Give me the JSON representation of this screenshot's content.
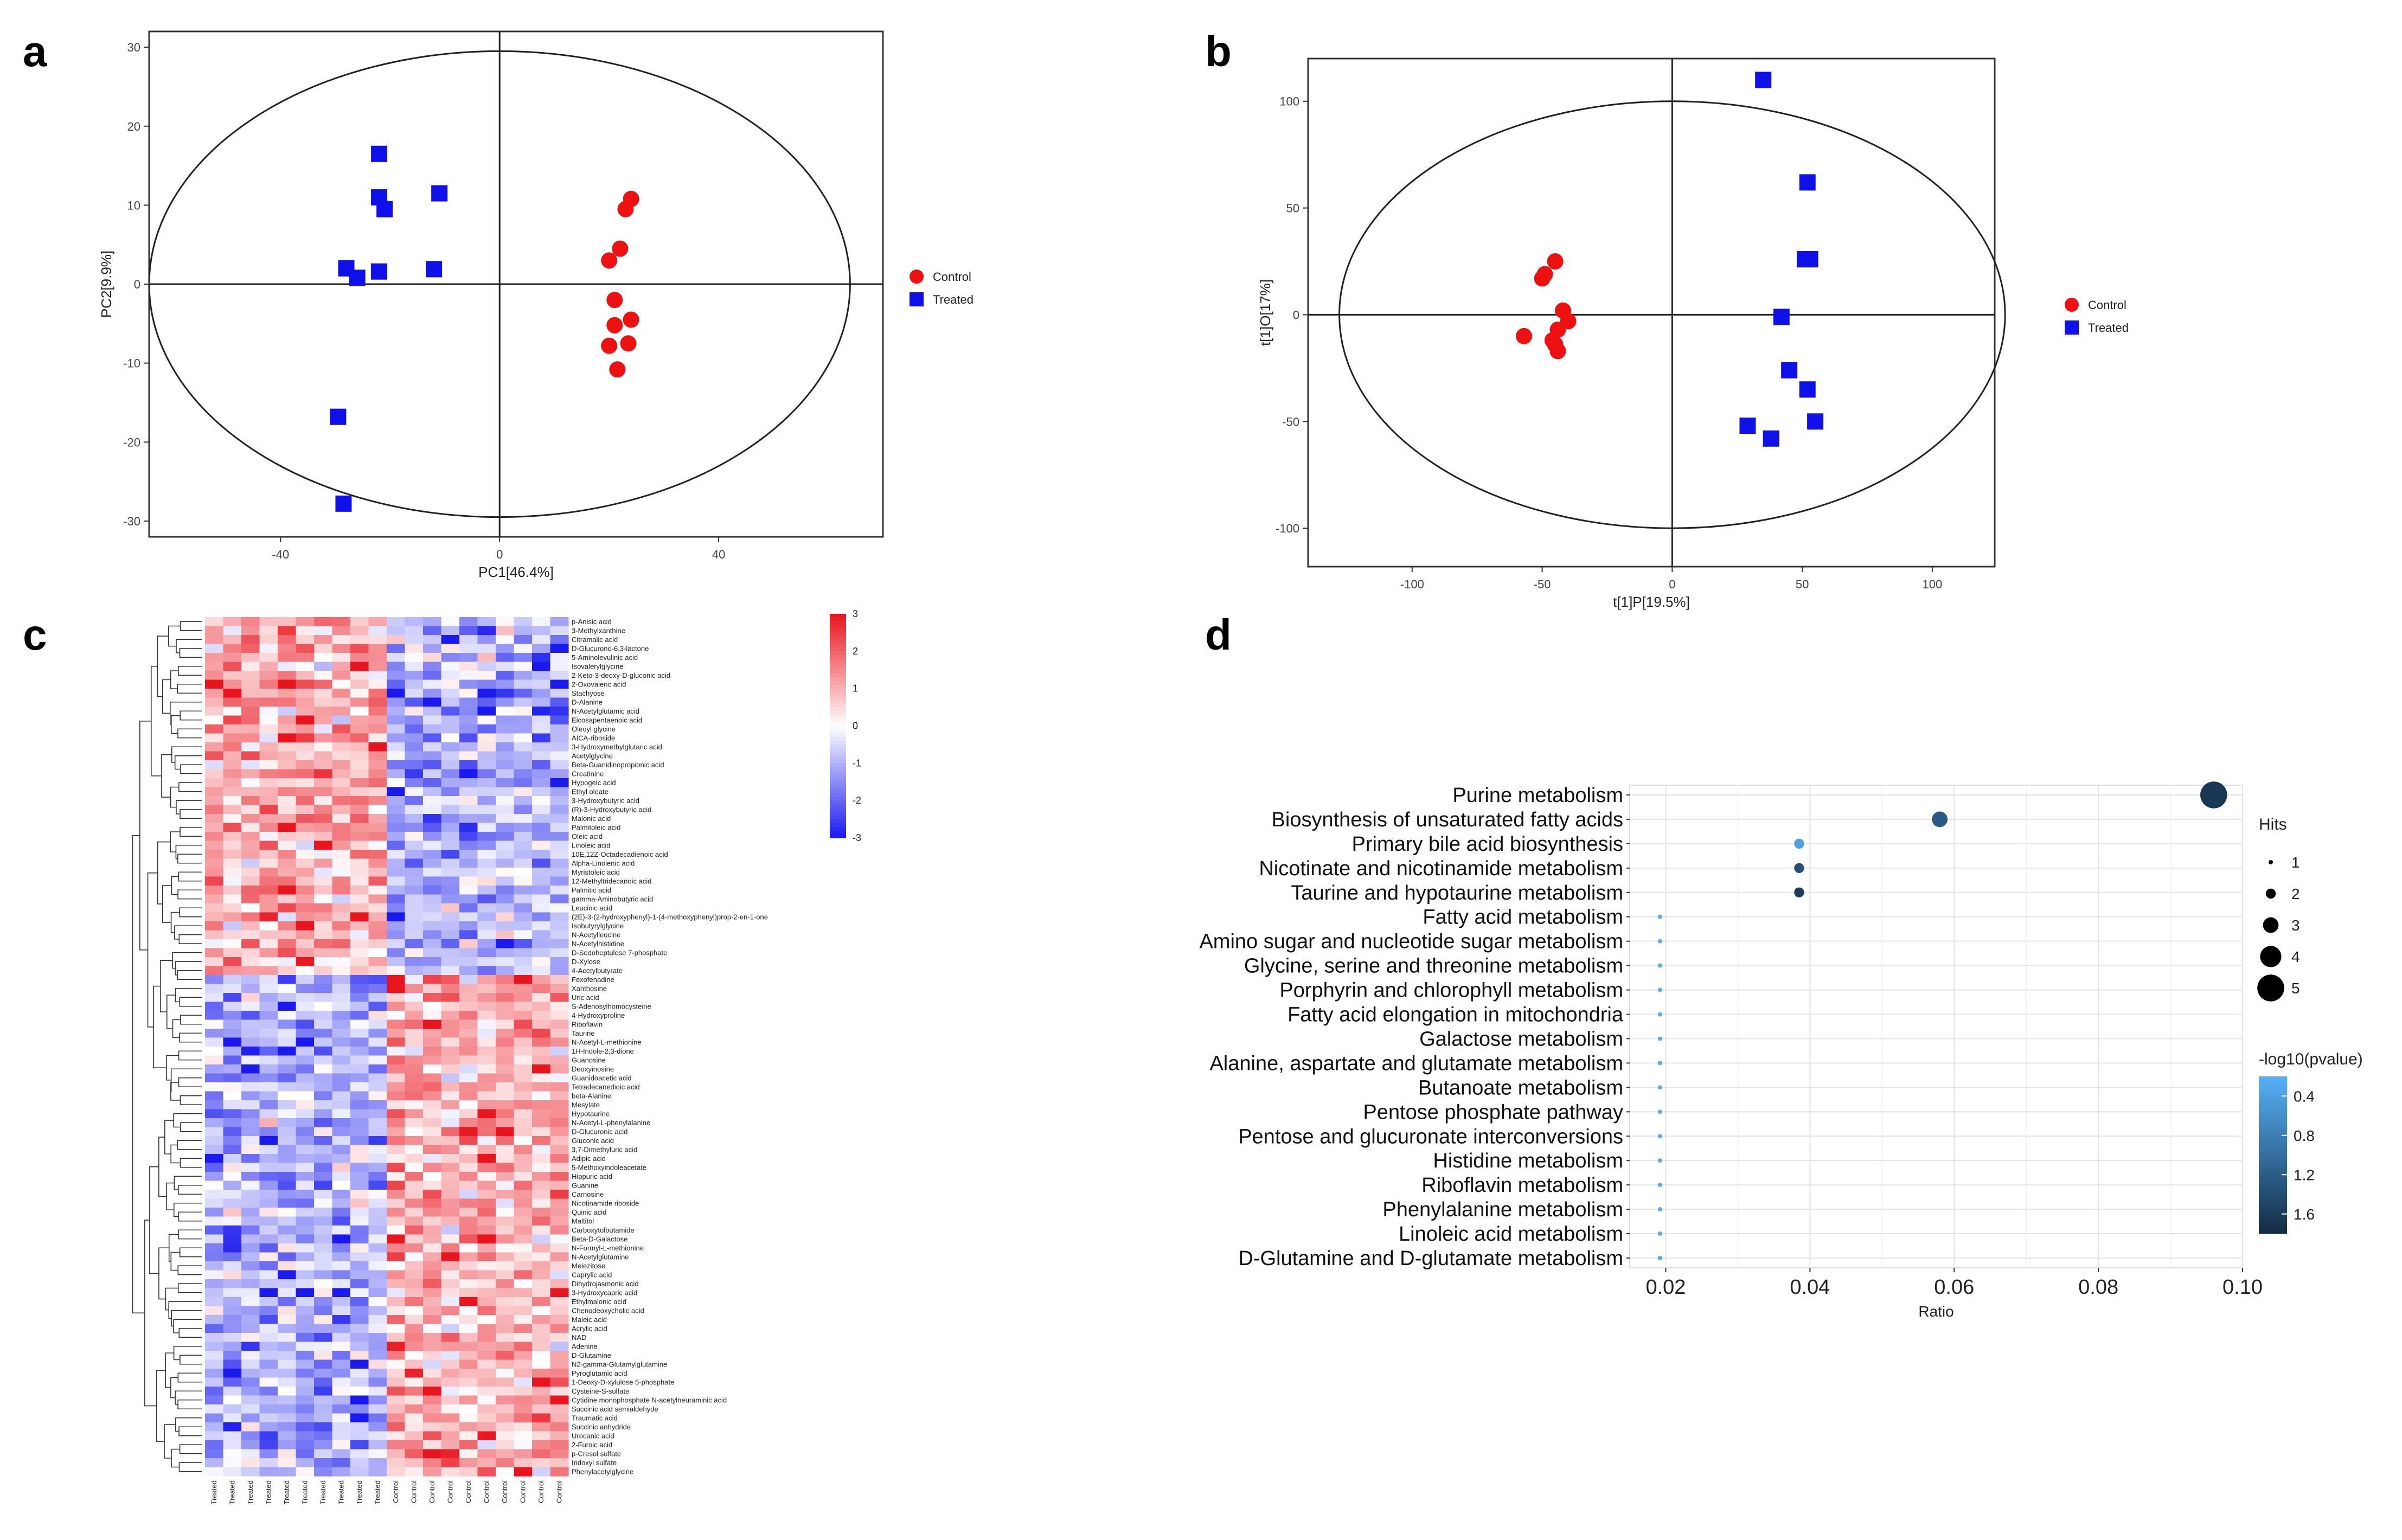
{
  "panel_labels": [
    "a",
    "b",
    "c",
    "d"
  ],
  "colors": {
    "control": "#ee1111",
    "treated": "#1010e8",
    "axis": "#333333",
    "grid": "#e4e4e4"
  },
  "chart_data": [
    {
      "id": "a",
      "type": "scatter",
      "xlabel": "PC1[46.4%]",
      "ylabel": "PC2[9.9%]",
      "xlim": [
        -64,
        70
      ],
      "ylim": [
        -32,
        32
      ],
      "xticks": [
        -40,
        0,
        40
      ],
      "yticks": [
        30,
        20,
        10,
        0,
        -10,
        -20,
        -30
      ],
      "ellipse": {
        "cx": 0,
        "cy": 0,
        "rx": 64,
        "ry": 29.5
      },
      "legend": [
        "Control",
        "Treated"
      ],
      "legend_position": "right",
      "series": [
        {
          "name": "Control",
          "marker": "circle",
          "points": [
            [
              24,
              10.8
            ],
            [
              23,
              9.5
            ],
            [
              22,
              4.5
            ],
            [
              20,
              3
            ],
            [
              21,
              -2
            ],
            [
              21,
              -5.2
            ],
            [
              24,
              -4.5
            ],
            [
              20,
              -7.8
            ],
            [
              23.5,
              -7.5
            ],
            [
              21.5,
              -10.8
            ]
          ]
        },
        {
          "name": "Treated",
          "marker": "square",
          "points": [
            [
              -22,
              16.5
            ],
            [
              -22,
              11
            ],
            [
              -21,
              9.5
            ],
            [
              -11,
              11.5
            ],
            [
              -28,
              2
            ],
            [
              -26,
              0.8
            ],
            [
              -22,
              1.6
            ],
            [
              -12,
              1.9
            ],
            [
              -29.5,
              -16.8
            ],
            [
              -28.5,
              -27.8
            ]
          ]
        }
      ]
    },
    {
      "id": "b",
      "type": "scatter",
      "xlabel": "t[1]P[19.5%]",
      "ylabel": "t[1]O[17%]",
      "xlim": [
        -140,
        124
      ],
      "ylim": [
        -118,
        120
      ],
      "xticks": [
        -100,
        -50,
        0,
        50,
        100
      ],
      "yticks": [
        100,
        50,
        0,
        -50,
        -100
      ],
      "ellipse": {
        "cx": 0,
        "cy": 0,
        "rx": 128,
        "ry": 100
      },
      "legend": [
        "Control",
        "Treated"
      ],
      "legend_position": "right",
      "series": [
        {
          "name": "Control",
          "marker": "circle",
          "points": [
            [
              -45,
              25
            ],
            [
              -49,
              19
            ],
            [
              -50,
              17
            ],
            [
              -42,
              2
            ],
            [
              -40,
              -3
            ],
            [
              -44,
              -7
            ],
            [
              -57,
              -10
            ],
            [
              -46,
              -12
            ],
            [
              -45,
              -14
            ],
            [
              -44,
              -17
            ]
          ]
        },
        {
          "name": "Treated",
          "marker": "square",
          "points": [
            [
              35,
              110
            ],
            [
              52,
              62
            ],
            [
              51,
              26
            ],
            [
              53,
              26
            ],
            [
              42,
              -1
            ],
            [
              45,
              -26
            ],
            [
              52,
              -35
            ],
            [
              55,
              -50
            ],
            [
              29,
              -52
            ],
            [
              38,
              -58
            ]
          ]
        }
      ]
    },
    {
      "id": "c",
      "type": "heatmap",
      "columns": [
        "Treated",
        "Treated",
        "Treated",
        "Treated",
        "Treated",
        "Treated",
        "Treated",
        "Treated",
        "Treated",
        "Treated",
        "Control",
        "Control",
        "Control",
        "Control",
        "Control",
        "Control",
        "Control",
        "Control",
        "Control",
        "Control"
      ],
      "rows": [
        "p-Anisic acid",
        "3-Methylxanthine",
        "Citramalic acid",
        "D-Glucurono-6,3-lactone",
        "5-Aminolevulinic acid",
        "Isovalerylglycine",
        "2-Keto-3-deoxy-D-gluconic acid",
        "2-Oxovaleric acid",
        "Stachyose",
        "D-Alanine",
        "N-Acetylglutamic acid",
        "Eicosapentaenoic acid",
        "Oleoyl glycine",
        "AICA-riboside",
        "3-Hydroxymethylglutaric acid",
        "Acetylglycine",
        "Beta-Guanidinopropionic acid",
        "Creatinine",
        "Hypogeic acid",
        "Ethyl oleate",
        "3-Hydroxybutyric acid",
        "(R)-3-Hydroxybutyric acid",
        "Malonic acid",
        "Palmitoleic acid",
        "Oleic acid",
        "Linoleic acid",
        "10E,12Z-Octadecadienoic acid",
        "Alpha-Linolenic acid",
        "Myristoleic acid",
        "12-Methyltridecanoic acid",
        "Palmitic acid",
        "gamma-Aminobutyric acid",
        "Leucinic acid",
        "(2E)-3-(2-hydroxyphenyl)-1-(4-methoxyphenyl)prop-2-en-1-one",
        "Isobutyrylglycine",
        "N-Acetylleucine",
        "N-Acetylhistidine",
        "D-Sedoheptulose 7-phosphate",
        "D-Xylose",
        "4-Acetylbutyrate",
        "Fexofenadine",
        "Xanthosine",
        "Uric acid",
        "S-Adenosylhomocysteine",
        "4-Hydroxyproline",
        "Riboflavin",
        "Taurine",
        "N-Acetyl-L-methionine",
        "1H-Indole-2,3-dione",
        "Guanosine",
        "Deoxyinosine",
        "Guanidoacetic acid",
        "Tetradecanedioic acid",
        "beta-Alanine",
        "Mesylate",
        "Hypotaurine",
        "N-Acetyl-L-phenylalanine",
        "D-Glucuronic acid",
        "Gluconic acid",
        "3,7-Dimethyluric acid",
        "Adipic acid",
        "5-Methoxyindoleacetate",
        "Hippuric acid",
        "Guanine",
        "Carnosine",
        "Nicotinamide riboside",
        "Quinic acid",
        "Maltitol",
        "Carboxytolbutamide",
        "Beta-D-Galactose",
        "N-Formyl-L-methionine",
        "N-Acetylglutamine",
        "Melezitose",
        "Caprylic acid",
        "Dihydrojasmonic acid",
        "3-Hydroxycapric acid",
        "Ethylmalonic acid",
        "Chenodeoxycholic acid",
        "Maleic acid",
        "Acrylic acid",
        "NAD",
        "Adenine",
        "D-Glutamine",
        "N2-gamma-Glutamylglutamine",
        "Pyroglutamic acid",
        "1-Deoxy-D-xylulose 5-phosphate",
        "Cysteine-S-sulfate",
        "Cytidine monophosphate N-acetylneuraminic acid",
        "Succinic acid semialdehyde",
        "Traumatic acid",
        "Succinic anhydride",
        "Urocanic acid",
        "2-Furoic acid",
        "p-Cresol sulfate",
        "Indoxyl sulfate",
        "Phenylacetylglycine"
      ],
      "colorbar": {
        "ticks": [
          3,
          2,
          1,
          0,
          -1,
          -2,
          -3
        ],
        "range": [
          -3,
          3
        ],
        "low": "#1a1aee",
        "mid": "#ffffff",
        "high": "#e8141e"
      }
    },
    {
      "id": "d",
      "type": "scatter",
      "xlabel": "Ratio",
      "xlim": [
        0.015,
        0.1
      ],
      "xticks": [
        "0.02",
        "0.04",
        "0.06",
        "0.08",
        "0.10"
      ],
      "pathways": [
        "Purine metabolism",
        "Biosynthesis of unsaturated fatty acids",
        "Primary bile acid biosynthesis",
        "Nicotinate and nicotinamide metabolism",
        "Taurine and hypotaurine metabolism",
        "Fatty acid metabolism",
        "Amino sugar and nucleotide sugar metabolism",
        "Glycine, serine and threonine metabolism",
        "Porphyrin and chlorophyll metabolism",
        "Fatty acid elongation in mitochondria",
        "Galactose metabolism",
        "Alanine, aspartate and glutamate metabolism",
        "Butanoate metabolism",
        "Pentose phosphate pathway",
        "Pentose and glucuronate interconversions",
        "Histidine metabolism",
        "Riboflavin metabolism",
        "Phenylalanine metabolism",
        "Linoleic acid metabolism",
        "D-Glutamine and D-glutamate metabolism"
      ],
      "ratio": [
        0.096,
        0.058,
        0.0385,
        0.0385,
        0.0385,
        0.0192,
        0.0192,
        0.0192,
        0.0192,
        0.0192,
        0.0192,
        0.0192,
        0.0192,
        0.0192,
        0.0192,
        0.0192,
        0.0192,
        0.0192,
        0.0192,
        0.0192
      ],
      "hits": [
        5,
        3,
        2,
        2,
        2,
        1,
        1,
        1,
        1,
        1,
        1,
        1,
        1,
        1,
        1,
        1,
        1,
        1,
        1,
        1
      ],
      "neglog10p": [
        1.65,
        1.25,
        0.4,
        1.35,
        1.6,
        0.25,
        0.25,
        0.25,
        0.25,
        0.25,
        0.25,
        0.25,
        0.25,
        0.25,
        0.25,
        0.25,
        0.25,
        0.25,
        0.25,
        0.25
      ],
      "size_legend": {
        "title": "Hits",
        "values": [
          1,
          2,
          3,
          4,
          5
        ]
      },
      "color_legend": {
        "title": "-log10(pvalue)",
        "ticks": [
          "0.4",
          "0.8",
          "1.2",
          "1.6"
        ],
        "range": [
          0.2,
          1.8
        ],
        "low": "#56b1f7",
        "high": "#132b43"
      }
    }
  ]
}
